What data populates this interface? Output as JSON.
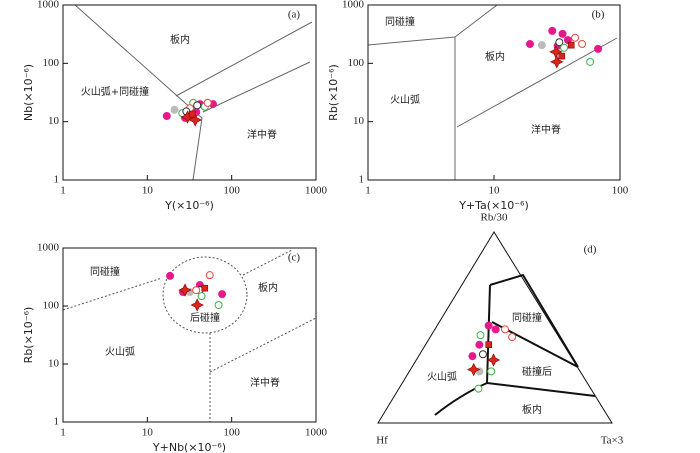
{
  "chart_data": [
    {
      "type": "scatter",
      "panel": "(a)",
      "xlabel": "Y(×10⁻⁶)",
      "ylabel": "Nb(×10⁻⁶)",
      "log_x": true,
      "log_y": true,
      "xlim": [
        1,
        1000
      ],
      "ylim": [
        1,
        1000
      ],
      "xticks": [
        1,
        10,
        100,
        1000
      ],
      "yticks": [
        1,
        10,
        100,
        1000
      ],
      "fields": [
        "板内",
        "火山弧+同碰撞",
        "洋中脊"
      ],
      "series": [
        {
          "marker": "circle",
          "filled": true,
          "color": "#e6198c",
          "x": [
            17,
            42,
            60,
            28,
            38
          ],
          "y": [
            12.5,
            20,
            20,
            11.6,
            14.6
          ]
        },
        {
          "marker": "circle",
          "filled": true,
          "color": "#bbbbbb",
          "x": [
            21
          ],
          "y": [
            16
          ]
        },
        {
          "marker": "circle",
          "filled": false,
          "color": "#3cb44b",
          "x": [
            35,
            48,
            26
          ],
          "y": [
            21,
            18,
            14
          ]
        },
        {
          "marker": "circle",
          "filled": false,
          "color": "#e8463c",
          "x": [
            52,
            32
          ],
          "y": [
            21,
            17
          ]
        },
        {
          "marker": "circle",
          "filled": false,
          "color": "#333333",
          "x": [
            39,
            29
          ],
          "y": [
            19,
            15
          ]
        },
        {
          "marker": "star",
          "filled": true,
          "color": "#d7261e",
          "x": [
            30,
            37
          ],
          "y": [
            12,
            10.7
          ]
        },
        {
          "marker": "square",
          "filled": true,
          "color": "#d7261e",
          "x": [
            34
          ],
          "y": [
            13.5
          ]
        }
      ]
    },
    {
      "type": "scatter",
      "panel": "(b)",
      "xlabel": "Y+Ta(×10⁻⁶)",
      "ylabel": "Rb(×10⁻⁶)",
      "log_x": true,
      "log_y": true,
      "xlim": [
        1,
        100
      ],
      "ylim": [
        1,
        1000
      ],
      "xticks": [
        1,
        10,
        100
      ],
      "yticks": [
        1,
        10,
        100,
        1000
      ],
      "fields": [
        "同碰撞",
        "板内",
        "火山弧",
        "洋中脊"
      ],
      "series": [
        {
          "marker": "circle",
          "filled": true,
          "color": "#e6198c",
          "x": [
            19.3,
            29,
            35,
            38.6,
            67,
            32
          ],
          "y": [
            214,
            360,
            320,
            250,
            177,
            200
          ]
        },
        {
          "marker": "circle",
          "filled": true,
          "color": "#bbbbbb",
          "x": [
            24
          ],
          "y": [
            205
          ]
        },
        {
          "marker": "circle",
          "filled": false,
          "color": "#333333",
          "x": [
            33
          ],
          "y": [
            230
          ]
        },
        {
          "marker": "circle",
          "filled": false,
          "color": "#e8463c",
          "x": [
            44,
            50
          ],
          "y": [
            275,
            215
          ]
        },
        {
          "marker": "circle",
          "filled": false,
          "color": "#3cb44b",
          "x": [
            58,
            36
          ],
          "y": [
            106,
            185
          ]
        },
        {
          "marker": "star",
          "filled": true,
          "color": "#d7261e",
          "x": [
            31,
            31.5
          ],
          "y": [
            157,
            106
          ]
        },
        {
          "marker": "square",
          "filled": true,
          "color": "#d7261e",
          "x": [
            34.5,
            41
          ],
          "y": [
            133,
            205
          ]
        }
      ]
    },
    {
      "type": "scatter",
      "panel": "(c)",
      "xlabel": "Y+Nb(×10⁻⁶)",
      "ylabel": "Rb(×10⁻⁶)",
      "log_x": true,
      "log_y": true,
      "xlim": [
        1,
        1000
      ],
      "ylim": [
        1,
        1000
      ],
      "xticks": [
        1,
        10,
        100,
        1000
      ],
      "yticks": [
        1,
        10,
        100,
        1000
      ],
      "fields": [
        "同碰撞",
        "板内",
        "后碰撞",
        "火山弧",
        "洋中脊"
      ],
      "series": [
        {
          "marker": "circle",
          "filled": true,
          "color": "#e6198c",
          "x": [
            18.6,
            26.5,
            77,
            42
          ],
          "y": [
            330,
            174,
            160,
            230
          ]
        },
        {
          "marker": "circle",
          "filled": true,
          "color": "#bbbbbb",
          "x": [
            32
          ],
          "y": [
            174
          ]
        },
        {
          "marker": "circle",
          "filled": false,
          "color": "#333333",
          "x": [
            42
          ],
          "y": [
            188
          ]
        },
        {
          "marker": "circle",
          "filled": false,
          "color": "#e8463c",
          "x": [
            55,
            38
          ],
          "y": [
            340,
            188
          ]
        },
        {
          "marker": "circle",
          "filled": false,
          "color": "#3cb44b",
          "x": [
            70,
            44
          ],
          "y": [
            104,
            148
          ]
        },
        {
          "marker": "star",
          "filled": true,
          "color": "#d7261e",
          "x": [
            28,
            39
          ],
          "y": [
            188,
            104
          ]
        },
        {
          "marker": "square",
          "filled": true,
          "color": "#d7261e",
          "x": [
            48
          ],
          "y": [
            203
          ]
        }
      ]
    },
    {
      "type": "ternary",
      "panel": "(d)",
      "vertices": [
        "Rb/30",
        "Hf",
        "Ta×3"
      ],
      "fields": [
        "同碰撞",
        "碰撞后",
        "火山弧",
        "板内"
      ],
      "series": [
        {
          "marker": "circle",
          "filled": true,
          "color": "#e6198c",
          "top": [
            51,
            49,
            41,
            35
          ],
          "left": [
            27,
            25,
            36,
            42
          ],
          "right": [
            22,
            26,
            23,
            23
          ]
        },
        {
          "marker": "circle",
          "filled": true,
          "color": "#bbbbbb",
          "top": [
            27
          ],
          "left": [
            43
          ],
          "right": [
            30
          ]
        },
        {
          "marker": "circle",
          "filled": false,
          "color": "#333333",
          "top": [
            36
          ],
          "left": [
            37
          ],
          "right": [
            27
          ]
        },
        {
          "marker": "circle",
          "filled": false,
          "color": "#e8463c",
          "top": [
            49,
            45
          ],
          "left": [
            21,
            20
          ],
          "right": [
            30,
            35
          ]
        },
        {
          "marker": "circle",
          "filled": false,
          "color": "#3cb44b",
          "top": [
            46,
            18,
            27
          ],
          "left": [
            33,
            48,
            38
          ],
          "right": [
            21,
            34,
            35
          ]
        },
        {
          "marker": "star",
          "filled": true,
          "color": "#d7261e",
          "top": [
            28,
            33
          ],
          "left": [
            45,
            34
          ],
          "right": [
            27,
            33
          ]
        },
        {
          "marker": "square",
          "filled": true,
          "color": "#d7261e",
          "top": [
            41
          ],
          "left": [
            32
          ],
          "right": [
            27
          ]
        }
      ]
    }
  ]
}
